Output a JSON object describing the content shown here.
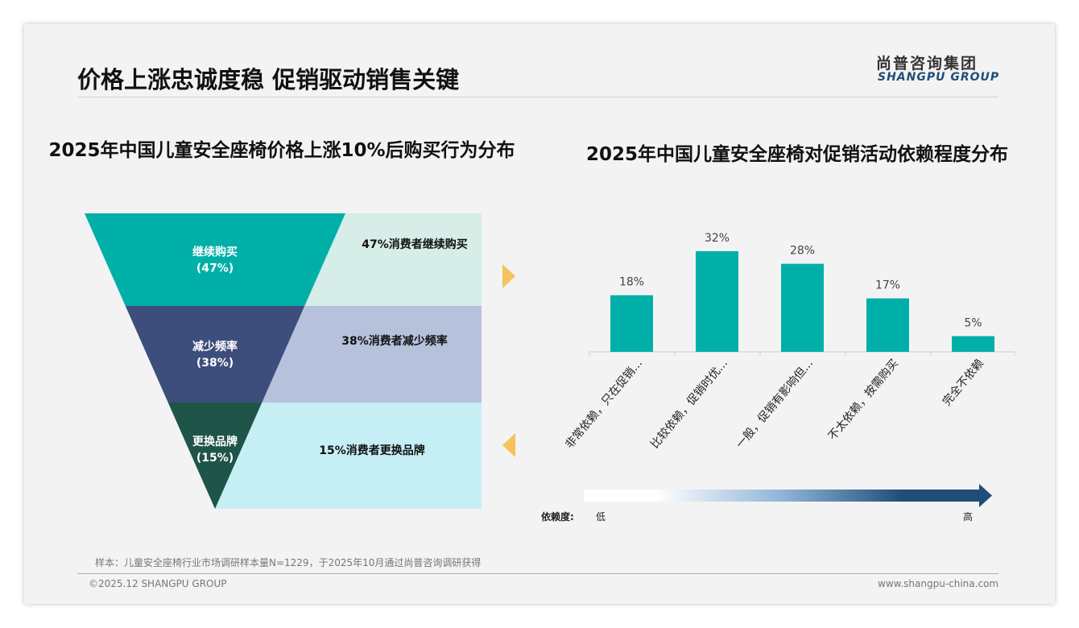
{
  "header": {
    "title": "价格上涨忠诚度稳 促销驱动销售关键",
    "logo_cn": "尚普咨询集团",
    "logo_en": "SHANGPU GROUP"
  },
  "chart_data": [
    {
      "type": "funnel",
      "title": "2025年中国儿童安全座椅价格上涨10%后购买行为分布",
      "categories": [
        "继续购买",
        "减少频率",
        "更换品牌"
      ],
      "values": [
        47,
        38,
        15
      ],
      "value_labels": [
        "(47%)",
        "(38%)",
        "(15%)"
      ],
      "descriptions": [
        "47%消费者继续购买",
        "38%消费者减少频率",
        "15%消费者更换品牌"
      ],
      "colors": [
        "#00b0a8",
        "#3d4e7c",
        "#1f5448"
      ],
      "panel_colors": [
        "#d6ede8",
        "#b6c1dc",
        "#c6eef5"
      ]
    },
    {
      "type": "bar",
      "title": "2025年中国儿童安全座椅对促销活动依赖程度分布",
      "categories": [
        "非常依赖，只在促销...",
        "比较依赖，促销时优...",
        "一般，促销有影响但...",
        "不太依赖，按需购买",
        "完全不依赖"
      ],
      "values": [
        18,
        32,
        28,
        17,
        5
      ],
      "value_labels": [
        "18%",
        "32%",
        "28%",
        "17%",
        "5%"
      ],
      "color": "#00b0a8",
      "ylim": [
        0,
        36
      ],
      "scale": {
        "label": "依赖度:",
        "low": "低",
        "high": "高"
      }
    }
  ],
  "footer": {
    "note": "样本：儿童安全座椅行业市场调研样本量N=1229，于2025年10月通过尚普咨询调研获得",
    "copyright": "©2025.12 SHANGPU GROUP",
    "url": "www.shangpu-china.com"
  }
}
